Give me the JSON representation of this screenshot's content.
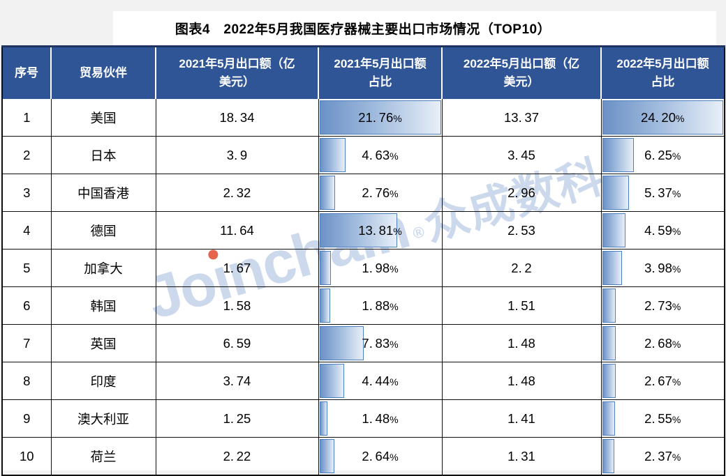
{
  "title": "图表4　2022年5月我国医疗器械主要出口市场情况（TOP10）",
  "watermark": {
    "brand": "Joinchain",
    "registered": "®",
    "suffix": "众成数科"
  },
  "colors": {
    "header_bg": "#2F5597",
    "header_text": "#FFFFFF",
    "grid_line": "#0F0F0F",
    "bar_border": "#4E80BD",
    "bar_fill_start": "#6B91C6",
    "bar_fill_end": "#E8EFF8",
    "watermark_blue": "#A7BDDE",
    "watermark_dot_red": "#E1492B",
    "page_margin_gray": "#F2F2F2"
  },
  "chart_data": {
    "type": "table",
    "title": "图表4　2022年5月我国医疗器械主要出口市场情况（TOP10）",
    "columns": [
      "序号",
      "贸易伙伴",
      "2021年5月出口额（亿美元）",
      "2021年5月出口额占比",
      "2022年5月出口额（亿美元）",
      "2022年5月出口额占比"
    ],
    "bar_axis": {
      "share_2021_max": 21.76,
      "share_2022_max": 24.2
    },
    "rows": [
      {
        "no": "1",
        "partner": "美国",
        "export_2021": "18.34",
        "share_2021": 21.76,
        "share_2021_label": "21.76%",
        "export_2022": "13.37",
        "share_2022": 24.2,
        "share_2022_label": "24.20%"
      },
      {
        "no": "2",
        "partner": "日本",
        "export_2021": "3.9",
        "share_2021": 4.63,
        "share_2021_label": "4.63%",
        "export_2022": "3.45",
        "share_2022": 6.25,
        "share_2022_label": "6.25%"
      },
      {
        "no": "3",
        "partner": "中国香港",
        "export_2021": "2.32",
        "share_2021": 2.76,
        "share_2021_label": "2.76%",
        "export_2022": "2.96",
        "share_2022": 5.37,
        "share_2022_label": "5.37%"
      },
      {
        "no": "4",
        "partner": "德国",
        "export_2021": "11.64",
        "share_2021": 13.81,
        "share_2021_label": "13.81%",
        "export_2022": "2.53",
        "share_2022": 4.59,
        "share_2022_label": "4.59%"
      },
      {
        "no": "5",
        "partner": "加拿大",
        "export_2021": "1.67",
        "share_2021": 1.98,
        "share_2021_label": "1.98%",
        "export_2022": "2.2",
        "share_2022": 3.98,
        "share_2022_label": "3.98%"
      },
      {
        "no": "6",
        "partner": "韩国",
        "export_2021": "1.58",
        "share_2021": 1.88,
        "share_2021_label": "1.88%",
        "export_2022": "1.51",
        "share_2022": 2.73,
        "share_2022_label": "2.73%"
      },
      {
        "no": "7",
        "partner": "英国",
        "export_2021": "6.59",
        "share_2021": 7.83,
        "share_2021_label": "7.83%",
        "export_2022": "1.48",
        "share_2022": 2.68,
        "share_2022_label": "2.68%"
      },
      {
        "no": "8",
        "partner": "印度",
        "export_2021": "3.74",
        "share_2021": 4.44,
        "share_2021_label": "4.44%",
        "export_2022": "1.48",
        "share_2022": 2.67,
        "share_2022_label": "2.67%"
      },
      {
        "no": "9",
        "partner": "澳大利亚",
        "export_2021": "1.25",
        "share_2021": 1.48,
        "share_2021_label": "1.48%",
        "export_2022": "1.41",
        "share_2022": 2.55,
        "share_2022_label": "2.55%"
      },
      {
        "no": "10",
        "partner": "荷兰",
        "export_2021": "2.22",
        "share_2021": 2.64,
        "share_2021_label": "2.64%",
        "export_2022": "1.31",
        "share_2022": 2.37,
        "share_2022_label": "2.37%"
      }
    ]
  }
}
